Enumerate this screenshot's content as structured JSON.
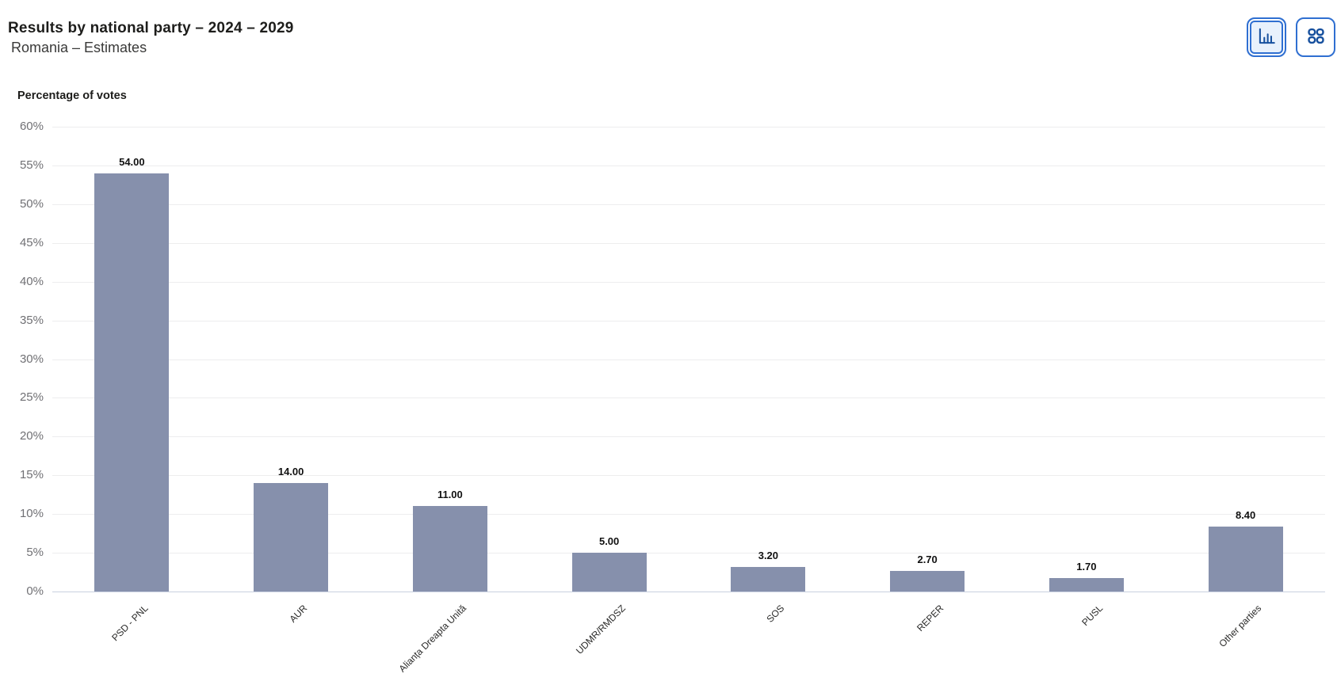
{
  "header": {
    "title": "Results by national party – 2024 – 2029",
    "subtitle": "Romania – Estimates"
  },
  "toolbar": {
    "buttons": [
      {
        "name": "bar-chart-view",
        "icon": "bar-chart-icon",
        "selected": true
      },
      {
        "name": "grid-view",
        "icon": "grid-icon",
        "selected": false
      }
    ]
  },
  "chart_data": {
    "type": "bar",
    "title": "Percentage of votes",
    "categories": [
      "PSD - PNL",
      "AUR",
      "Alianța Dreapta Unită",
      "UDMR/RMDSZ",
      "SOS",
      "REPER",
      "PUSL",
      "Other parties"
    ],
    "values": [
      54.0,
      14.0,
      11.0,
      5.0,
      3.2,
      2.7,
      1.7,
      8.4
    ],
    "value_labels": [
      "54.00",
      "14.00",
      "11.00",
      "5.00",
      "3.20",
      "2.70",
      "1.70",
      "8.40"
    ],
    "xlabel": "",
    "ylabel": "Percentage of votes",
    "ylim": [
      0,
      60
    ],
    "ytick_step": 5,
    "y_tick_labels": [
      "60%",
      "55%",
      "50%",
      "45%",
      "40%",
      "35%",
      "30%",
      "25%",
      "20%",
      "15%",
      "10%",
      "5%",
      "0%"
    ],
    "grid": true,
    "legend": false,
    "bar_color": "#8690ac",
    "grid_color": "#ededee",
    "zero_line_color": "#c9d1e0"
  },
  "colors": {
    "accent_blue": "#2f6fd1",
    "icon_blue": "#17509e",
    "selected_bg": "#e8f1fc",
    "title_text": "#1d1d1b",
    "tick_text": "#707074"
  }
}
